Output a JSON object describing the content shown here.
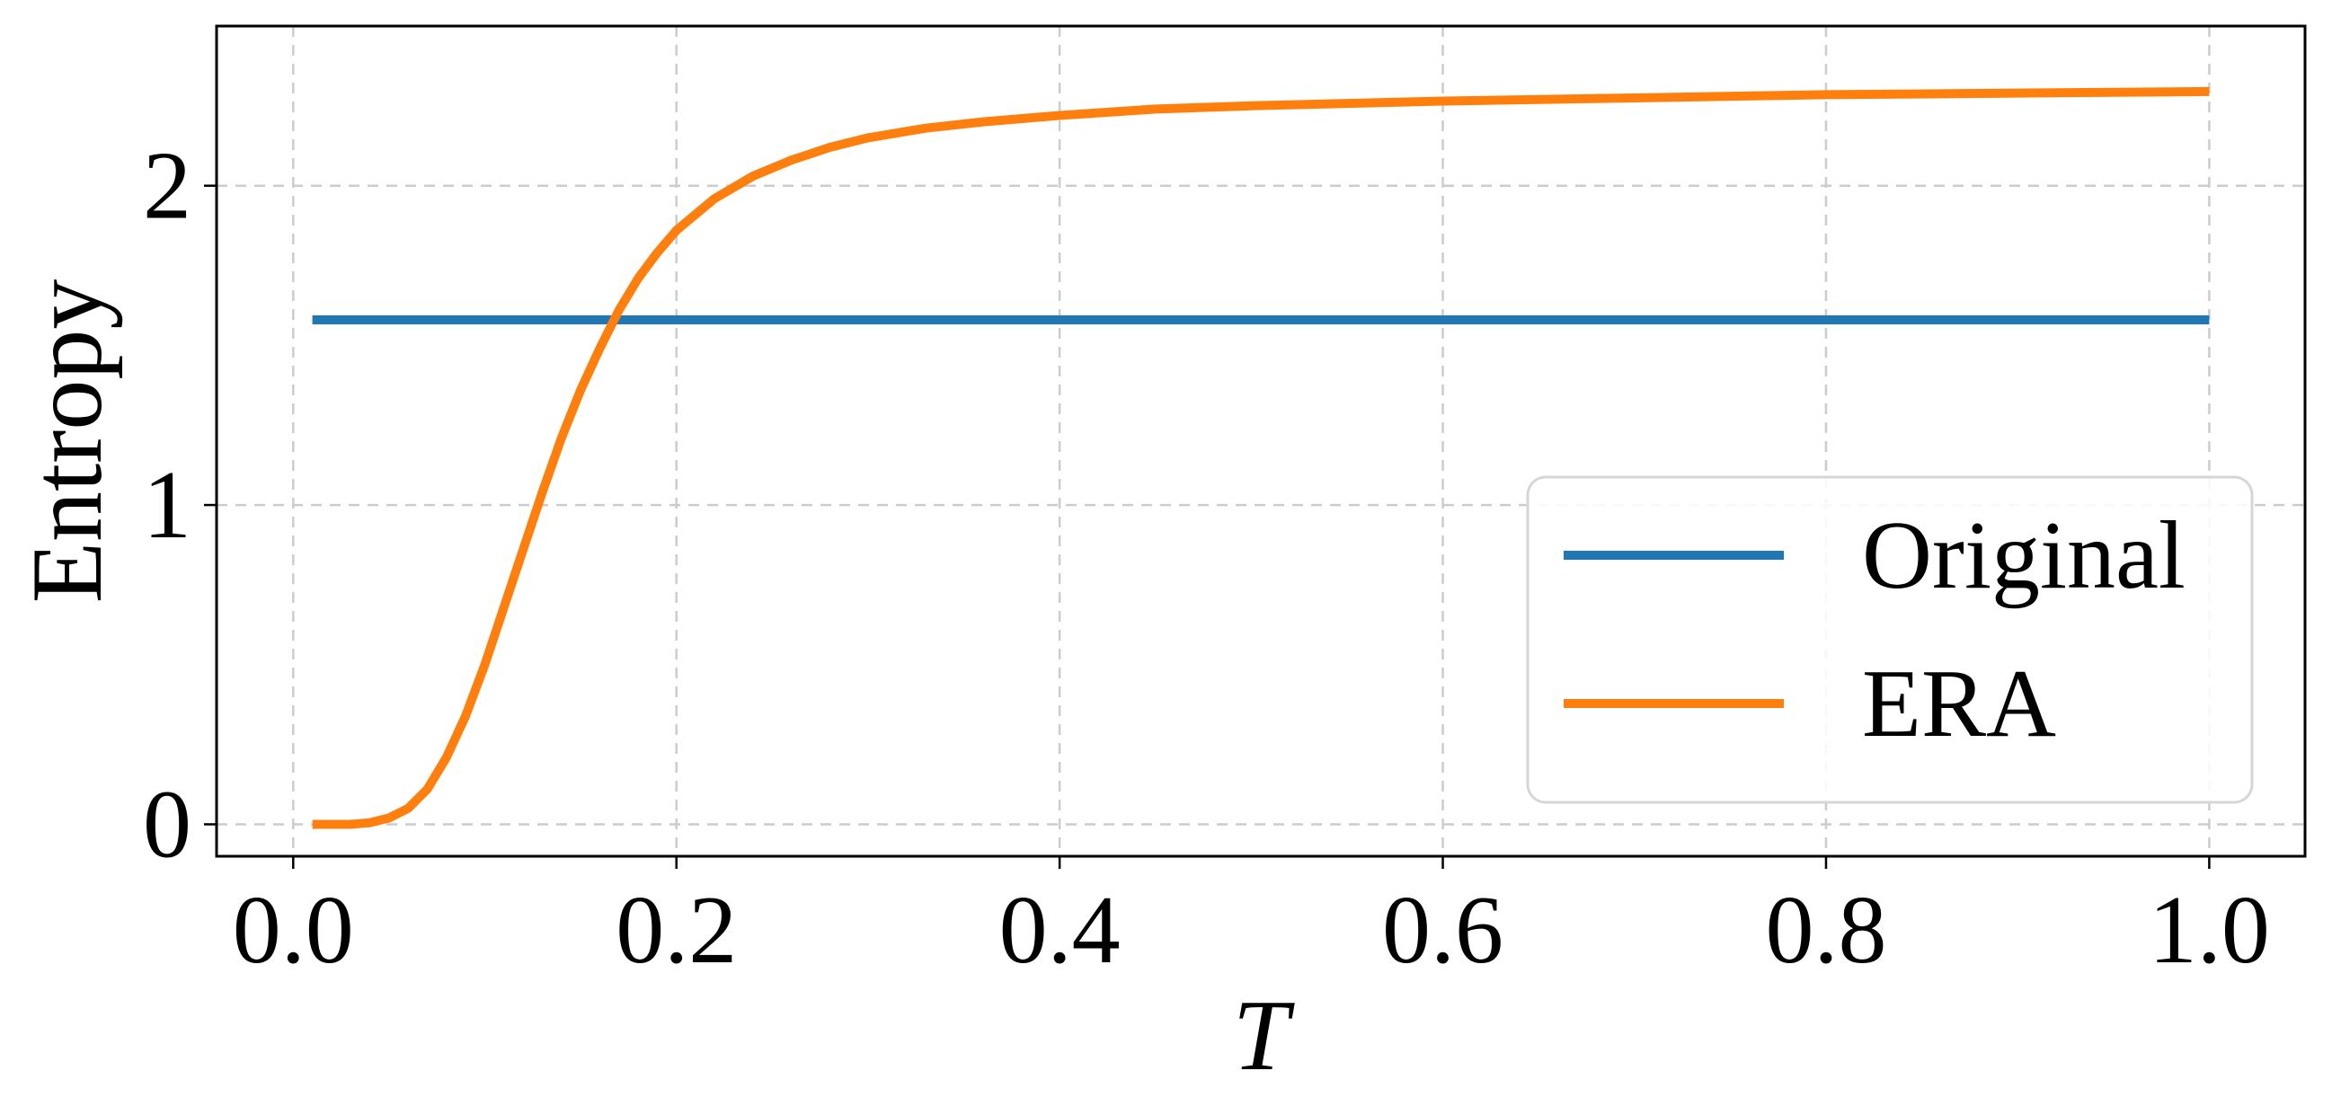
{
  "chart_data": {
    "type": "line",
    "title": "",
    "xlabel": "T",
    "ylabel": "Entropy",
    "xlim": [
      -0.04,
      1.05
    ],
    "ylim": [
      -0.1,
      2.5
    ],
    "xticks": [
      0.0,
      0.2,
      0.4,
      0.6,
      0.8,
      1.0
    ],
    "xtick_labels": [
      "0.0",
      "0.2",
      "0.4",
      "0.6",
      "0.8",
      "1.0"
    ],
    "yticks": [
      0,
      1,
      2
    ],
    "ytick_labels": [
      "0",
      "1",
      "2"
    ],
    "grid": true,
    "legend_position": "lower-right",
    "series": [
      {
        "name": "Original",
        "color": "#1f77b4",
        "x": [
          0.01,
          1.0
        ],
        "y": [
          1.58,
          1.58
        ]
      },
      {
        "name": "ERA",
        "color": "#ff7f0e",
        "x": [
          0.01,
          0.02,
          0.03,
          0.04,
          0.05,
          0.06,
          0.07,
          0.08,
          0.09,
          0.1,
          0.11,
          0.12,
          0.13,
          0.14,
          0.15,
          0.16,
          0.17,
          0.18,
          0.19,
          0.2,
          0.22,
          0.24,
          0.26,
          0.28,
          0.3,
          0.33,
          0.36,
          0.4,
          0.45,
          0.5,
          0.6,
          0.7,
          0.8,
          0.9,
          1.0
        ],
        "y": [
          0.0,
          0.0,
          0.0,
          0.005,
          0.02,
          0.05,
          0.11,
          0.21,
          0.34,
          0.5,
          0.68,
          0.86,
          1.04,
          1.21,
          1.36,
          1.49,
          1.61,
          1.71,
          1.79,
          1.86,
          1.96,
          2.03,
          2.08,
          2.12,
          2.15,
          2.18,
          2.2,
          2.22,
          2.24,
          2.25,
          2.265,
          2.275,
          2.285,
          2.29,
          2.295
        ]
      }
    ]
  }
}
